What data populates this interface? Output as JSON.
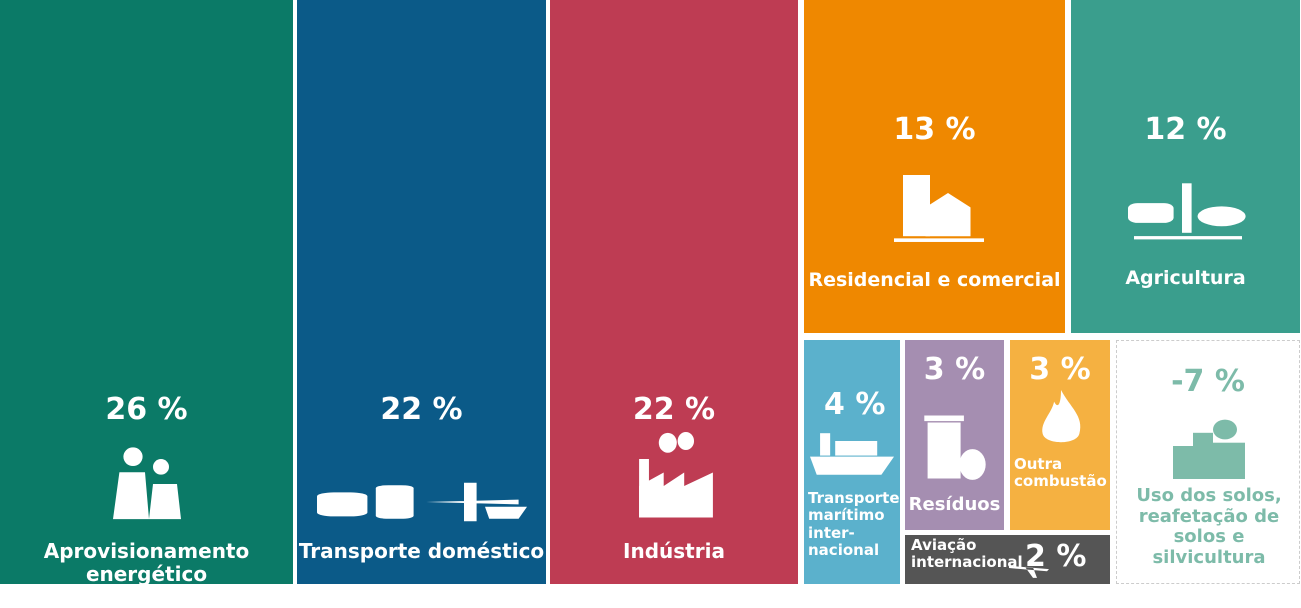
{
  "chart_data": {
    "type": "treemap",
    "categories": [
      "Aprovisionamento energético",
      "Transporte doméstico",
      "Indústria",
      "Residencial e comercial",
      "Agricultura",
      "Transporte marítimo inter-nacional",
      "Resíduos",
      "Outra combustão",
      "Aviação internacional",
      "Uso dos solos, reafetação de solos e silvicultura"
    ],
    "values": [
      26,
      22,
      22,
      13,
      12,
      4,
      3,
      3,
      2,
      -7
    ],
    "value_labels": [
      "26 %",
      "22 %",
      "22 %",
      "13 %",
      "12 %",
      "4 %",
      "3 %",
      "3 %",
      "2 %",
      "-7 %"
    ],
    "colors": [
      "#0b7a67",
      "#0b5a88",
      "#be3c53",
      "#ef8800",
      "#3a9e8d",
      "#5bb1cc",
      "#a58eb1",
      "#f5b141",
      "#555555",
      "#ffffff"
    ]
  }
}
